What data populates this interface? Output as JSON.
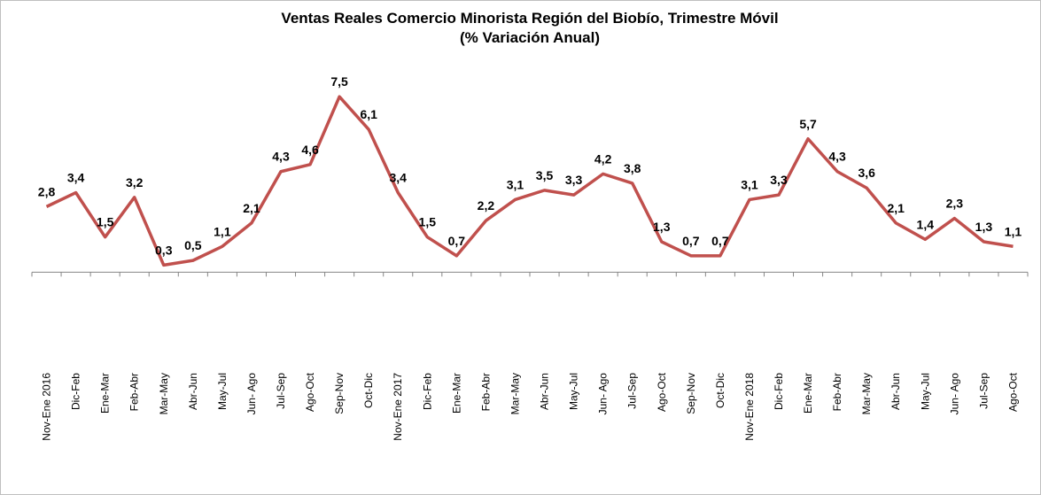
{
  "chart_data": {
    "type": "line",
    "title": "Ventas Reales Comercio Minorista Región del Biobío, Trimestre Móvil",
    "subtitle": "(% Variación Anual)",
    "categories": [
      "Nov-Ene 2016",
      "Dic-Feb",
      "Ene-Mar",
      "Feb-Abr",
      "Mar-May",
      "Abr-Jun",
      "May-Jul",
      "Jun- Ago",
      "Jul-Sep",
      "Ago-Oct",
      "Sep-Nov",
      "Oct-Dic",
      "Nov-Ene 2017",
      "Dic-Feb",
      "Ene-Mar",
      "Feb-Abr",
      "Mar-May",
      "Abr-Jun",
      "May-Jul",
      "Jun- Ago",
      "Jul-Sep",
      "Ago-Oct",
      "Sep-Nov",
      "Oct-Dic",
      "Nov-Ene 2018",
      "Dic-Feb",
      "Ene-Mar",
      "Feb-Abr",
      "Mar-May",
      "Abr-Jun",
      "May-Jul",
      "Jun- Ago",
      "Jul-Sep",
      "Ago-Oct"
    ],
    "values": [
      2.8,
      3.4,
      1.5,
      3.2,
      0.3,
      0.5,
      1.1,
      2.1,
      4.3,
      4.6,
      7.5,
      6.1,
      3.4,
      1.5,
      0.7,
      2.2,
      3.1,
      3.5,
      3.3,
      4.2,
      3.8,
      1.3,
      0.7,
      0.7,
      3.1,
      3.3,
      5.7,
      4.3,
      3.6,
      2.1,
      1.4,
      2.3,
      1.3,
      1.1
    ],
    "value_labels": [
      "2,8",
      "3,4",
      "1,5",
      "3,2",
      "0,3",
      "0,5",
      "1,1",
      "2,1",
      "4,3",
      "4,6",
      "7,5",
      "6,1",
      "3,4",
      "1,5",
      "0,7",
      "2,2",
      "3,1",
      "3,5",
      "3,3",
      "4,2",
      "3,8",
      "1,3",
      "0,7",
      "0,7",
      "3,1",
      "3,3",
      "5,7",
      "4,3",
      "3,6",
      "2,1",
      "1,4",
      "2,3",
      "1,3",
      "1,1"
    ],
    "color": "#c0504d",
    "ylim": [
      -4,
      8
    ],
    "grid": false
  }
}
